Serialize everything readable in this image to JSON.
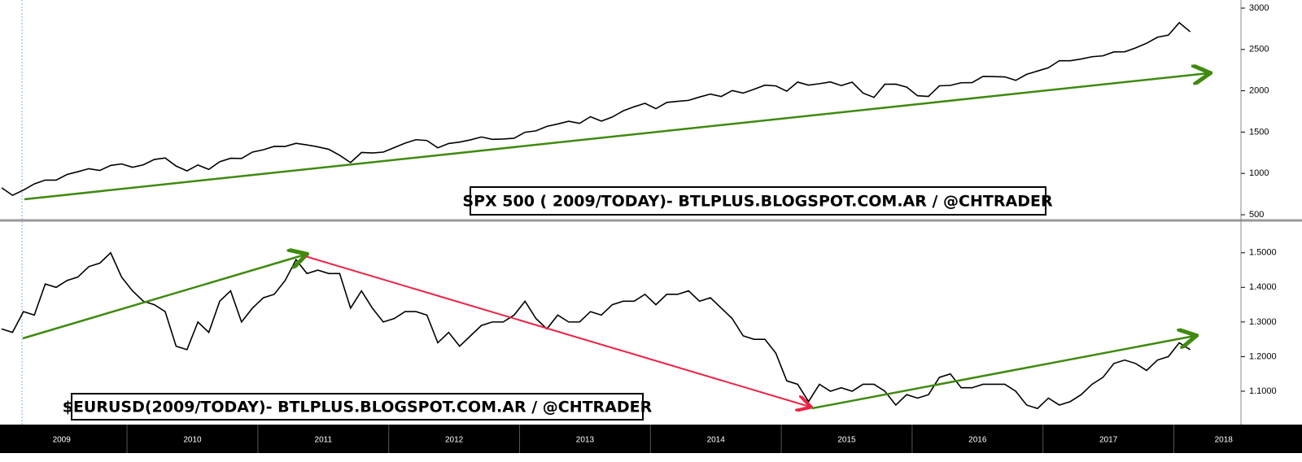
{
  "chart_data": [
    {
      "type": "line",
      "title": "SPX 500 ( 2009/TODAY)- BTLPLUS.BLOGSPOT.COM.AR / @CHTRADER",
      "color": "#000000",
      "values": [
        826,
        735,
        798,
        873,
        919,
        919,
        987,
        1021,
        1057,
        1036,
        1096,
        1115,
        1074,
        1104,
        1169,
        1187,
        1089,
        1031,
        1102,
        1049,
        1141,
        1183,
        1181,
        1258,
        1286,
        1327,
        1326,
        1364,
        1345,
        1321,
        1292,
        1219,
        1131,
        1253,
        1247,
        1258,
        1312,
        1366,
        1408,
        1398,
        1310,
        1362,
        1379,
        1406,
        1441,
        1412,
        1416,
        1426,
        1498,
        1515,
        1569,
        1598,
        1631,
        1606,
        1686,
        1633,
        1682,
        1757,
        1806,
        1848,
        1783,
        1859,
        1872,
        1884,
        1924,
        1960,
        1931,
        2003,
        1972,
        2018,
        2068,
        2059,
        1995,
        2105,
        2068,
        2086,
        2107,
        2063,
        2104,
        1972,
        1920,
        2079,
        2080,
        2044,
        1940,
        1932,
        2060,
        2065,
        2097,
        2099,
        2174,
        2171,
        2168,
        2126,
        2199,
        2239,
        2279,
        2364,
        2363,
        2384,
        2412,
        2423,
        2470,
        2472,
        2519,
        2575,
        2648,
        2674,
        2824,
        2714
      ],
      "ylim": [
        500,
        3000
      ],
      "yticks": [
        500,
        1000,
        1500,
        2000,
        2500,
        3000
      ]
    },
    {
      "type": "line",
      "title": "$EURUSD(2009/TODAY)- BTLPLUS.BLOGSPOT.COM.AR / @CHTRADER",
      "color": "#000000",
      "values": [
        1.28,
        1.27,
        1.33,
        1.32,
        1.41,
        1.4,
        1.42,
        1.43,
        1.46,
        1.47,
        1.5,
        1.43,
        1.39,
        1.36,
        1.35,
        1.33,
        1.23,
        1.22,
        1.3,
        1.27,
        1.36,
        1.39,
        1.3,
        1.34,
        1.37,
        1.38,
        1.42,
        1.48,
        1.44,
        1.45,
        1.44,
        1.44,
        1.34,
        1.39,
        1.34,
        1.3,
        1.31,
        1.33,
        1.33,
        1.32,
        1.24,
        1.27,
        1.23,
        1.26,
        1.29,
        1.3,
        1.3,
        1.32,
        1.36,
        1.31,
        1.28,
        1.32,
        1.3,
        1.3,
        1.33,
        1.32,
        1.35,
        1.36,
        1.36,
        1.38,
        1.35,
        1.38,
        1.38,
        1.39,
        1.36,
        1.37,
        1.34,
        1.31,
        1.26,
        1.25,
        1.25,
        1.21,
        1.13,
        1.12,
        1.07,
        1.12,
        1.1,
        1.11,
        1.1,
        1.12,
        1.12,
        1.1,
        1.06,
        1.09,
        1.08,
        1.09,
        1.14,
        1.15,
        1.11,
        1.11,
        1.12,
        1.12,
        1.12,
        1.1,
        1.06,
        1.05,
        1.08,
        1.06,
        1.07,
        1.09,
        1.12,
        1.14,
        1.18,
        1.19,
        1.18,
        1.16,
        1.19,
        1.2,
        1.24,
        1.22
      ],
      "ylim": [
        1.0,
        1.57
      ],
      "yticks": [
        {
          "value": 1.1,
          "label": "1.1000"
        },
        {
          "value": 1.2,
          "label": "1.2000"
        },
        {
          "value": 1.3,
          "label": "1.3000"
        },
        {
          "value": 1.4,
          "label": "1.4000"
        },
        {
          "value": 1.5,
          "label": "1.5000"
        }
      ],
      "x_labels": [
        "2009",
        "2010",
        "2011",
        "2012",
        "2013",
        "2014",
        "2015",
        "2016",
        "2017",
        "2018"
      ]
    }
  ]
}
